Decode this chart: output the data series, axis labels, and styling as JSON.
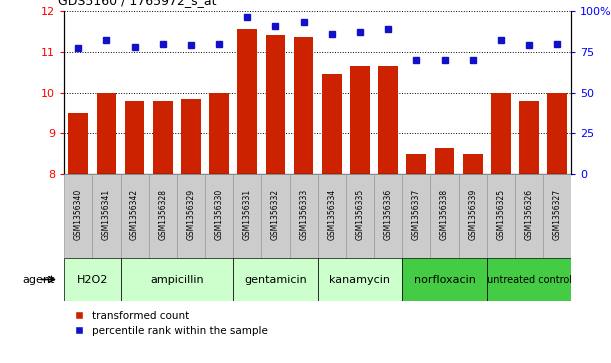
{
  "title": "GDS5160 / 1765972_s_at",
  "samples": [
    "GSM1356340",
    "GSM1356341",
    "GSM1356342",
    "GSM1356328",
    "GSM1356329",
    "GSM1356330",
    "GSM1356331",
    "GSM1356332",
    "GSM1356333",
    "GSM1356334",
    "GSM1356335",
    "GSM1356336",
    "GSM1356337",
    "GSM1356338",
    "GSM1356339",
    "GSM1356325",
    "GSM1356326",
    "GSM1356327"
  ],
  "bar_values": [
    9.5,
    10.0,
    9.8,
    9.8,
    9.85,
    10.0,
    11.55,
    11.4,
    11.35,
    10.45,
    10.65,
    10.65,
    8.5,
    8.65,
    8.5,
    10.0,
    9.8,
    10.0
  ],
  "dot_values": [
    77,
    82,
    78,
    80,
    79,
    80,
    96,
    91,
    93,
    86,
    87,
    89,
    70,
    70,
    70,
    82,
    79,
    80
  ],
  "bar_color": "#cc2200",
  "dot_color": "#1111cc",
  "ylim_left": [
    8,
    12
  ],
  "ylim_right": [
    0,
    100
  ],
  "yticks_left": [
    8,
    9,
    10,
    11,
    12
  ],
  "yticks_right": [
    0,
    25,
    50,
    75,
    100
  ],
  "ytick_labels_right": [
    "0",
    "25",
    "50",
    "75",
    "100%"
  ],
  "groups": [
    {
      "label": "H2O2",
      "start": 0,
      "end": 1,
      "color": "#ccffcc"
    },
    {
      "label": "ampicillin",
      "start": 2,
      "end": 5,
      "color": "#ccffcc"
    },
    {
      "label": "gentamicin",
      "start": 6,
      "end": 8,
      "color": "#ccffcc"
    },
    {
      "label": "kanamycin",
      "start": 9,
      "end": 11,
      "color": "#ccffcc"
    },
    {
      "label": "norfloxacin",
      "start": 12,
      "end": 14,
      "color": "#44cc44"
    },
    {
      "label": "untreated control",
      "start": 15,
      "end": 17,
      "color": "#44cc44"
    }
  ],
  "agent_label": "agent",
  "legend_bar_label": "transformed count",
  "legend_dot_label": "percentile rank within the sample",
  "sample_box_color": "#cccccc",
  "sample_box_edge_color": "#999999"
}
